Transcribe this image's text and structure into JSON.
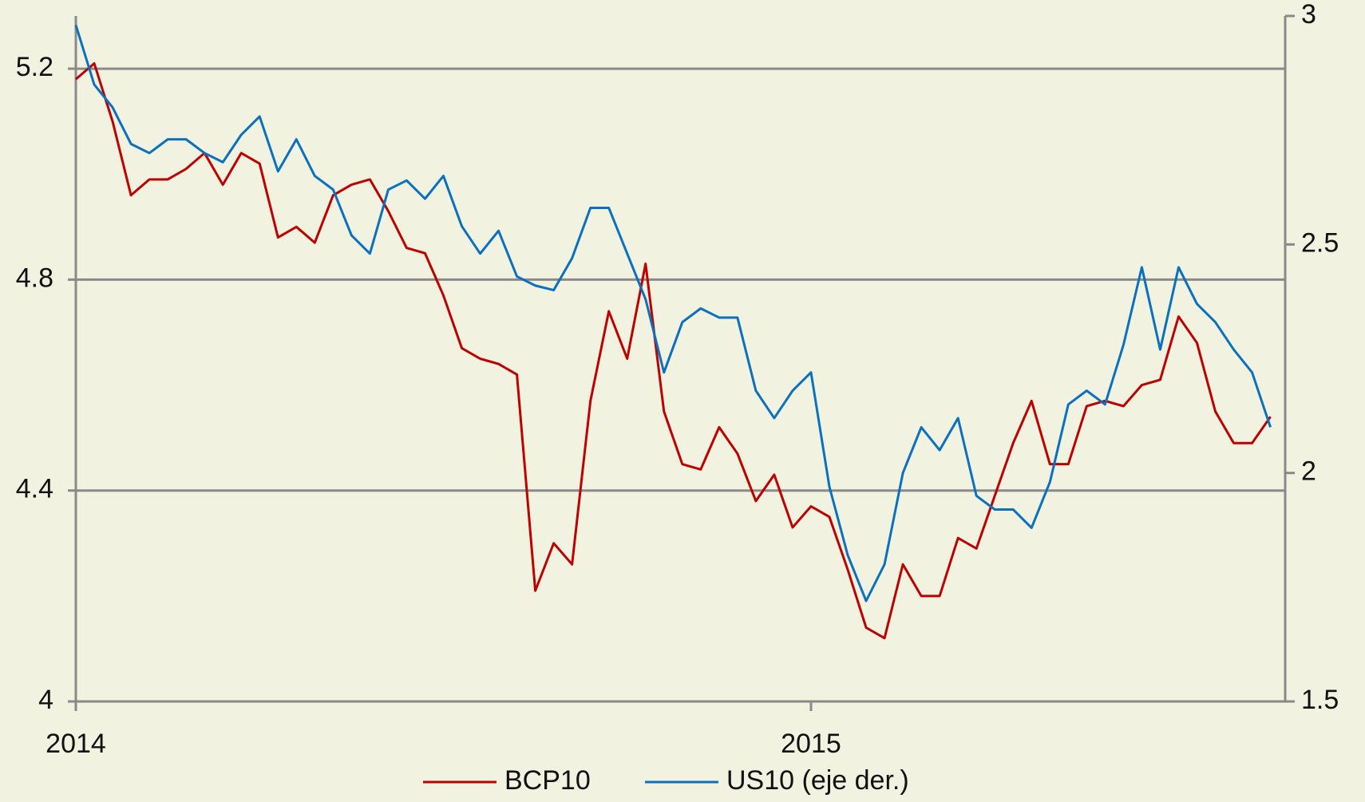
{
  "chart_data": {
    "type": "line",
    "x": [
      2014,
      2014.025,
      2014.05,
      2014.075,
      2014.1,
      2014.125,
      2014.15,
      2014.175,
      2014.2,
      2014.225,
      2014.25,
      2014.275,
      2014.3,
      2014.325,
      2014.35,
      2014.375,
      2014.4,
      2014.425,
      2014.45,
      2014.475,
      2014.5,
      2014.525,
      2014.55,
      2014.575,
      2014.6,
      2014.625,
      2014.65,
      2014.675,
      2014.7,
      2014.725,
      2014.75,
      2014.775,
      2014.8,
      2014.825,
      2014.85,
      2014.875,
      2014.9,
      2014.925,
      2014.95,
      2014.975,
      2015,
      2015.025,
      2015.05,
      2015.075,
      2015.1,
      2015.125,
      2015.15,
      2015.175,
      2015.2,
      2015.225,
      2015.25,
      2015.275,
      2015.3,
      2015.325,
      2015.35,
      2015.375,
      2015.4,
      2015.425,
      2015.45,
      2015.475,
      2015.5,
      2015.525,
      2015.55,
      2015.575,
      2015.6,
      2015.625
    ],
    "series": [
      {
        "name": "BCP10",
        "color": "#c00000",
        "axis": "y",
        "values": [
          5.18,
          5.21,
          5.1,
          4.96,
          4.99,
          4.99,
          5.01,
          5.04,
          4.98,
          5.04,
          5.02,
          4.88,
          4.9,
          4.87,
          4.96,
          4.98,
          4.99,
          4.93,
          4.86,
          4.85,
          4.77,
          4.67,
          4.65,
          4.64,
          4.62,
          4.21,
          4.3,
          4.26,
          4.57,
          4.74,
          4.65,
          4.83,
          4.55,
          4.45,
          4.44,
          4.52,
          4.47,
          4.38,
          4.43,
          4.33,
          4.37,
          4.35,
          4.25,
          4.14,
          4.12,
          4.26,
          4.2,
          4.2,
          4.31,
          4.29,
          4.39,
          4.49,
          4.57,
          4.45,
          4.45,
          4.56,
          4.57,
          4.56,
          4.6,
          4.61,
          4.73,
          4.68,
          4.55,
          4.49,
          4.49,
          4.54
        ]
      },
      {
        "name": "US10 (eje der.)",
        "color": "#0a70c0",
        "axis": "y2",
        "values": [
          2.98,
          2.85,
          2.8,
          2.72,
          2.7,
          2.73,
          2.73,
          2.7,
          2.68,
          2.74,
          2.78,
          2.66,
          2.73,
          2.65,
          2.62,
          2.52,
          2.48,
          2.62,
          2.64,
          2.6,
          2.65,
          2.54,
          2.48,
          2.53,
          2.43,
          2.41,
          2.4,
          2.47,
          2.58,
          2.58,
          2.48,
          2.38,
          2.22,
          2.33,
          2.36,
          2.34,
          2.34,
          2.18,
          2.12,
          2.18,
          2.22,
          1.97,
          1.82,
          1.72,
          1.8,
          2.0,
          2.1,
          2.05,
          2.12,
          1.95,
          1.92,
          1.92,
          1.88,
          1.98,
          2.15,
          2.18,
          2.15,
          2.28,
          2.45,
          2.27,
          2.45,
          2.37,
          2.33,
          2.27,
          2.22,
          2.1
        ]
      }
    ],
    "xlim": [
      2014,
      2015.645
    ],
    "xticks": [
      2014,
      2015
    ],
    "ylim": [
      4,
      5.3
    ],
    "yticks": [
      4,
      4.4,
      4.8,
      5.2
    ],
    "y2lim": [
      1.5,
      3
    ],
    "y2ticks": [
      1.5,
      2,
      2.5,
      3
    ],
    "grid": true,
    "legend": "bottom"
  }
}
